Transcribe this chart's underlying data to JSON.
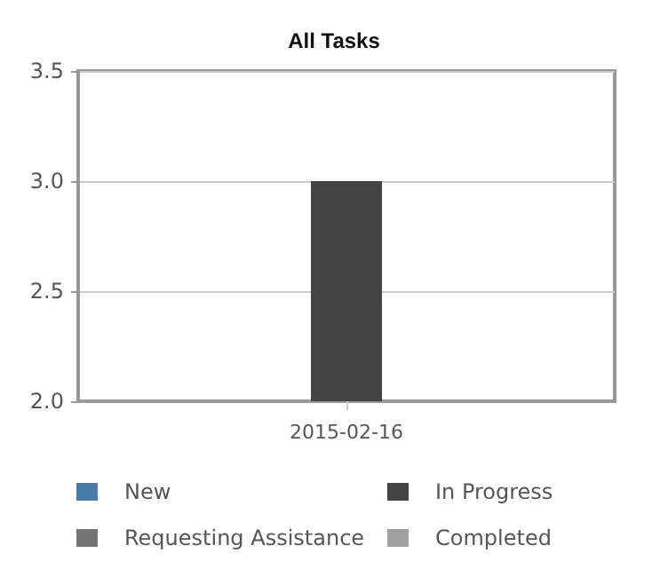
{
  "chart_data": {
    "type": "bar",
    "title": "All Tasks",
    "categories": [
      "2015-02-16"
    ],
    "series": [
      {
        "name": "New",
        "color": "#4a7aa8",
        "values": [
          null
        ]
      },
      {
        "name": "In Progress",
        "color": "#444444",
        "values": [
          3.0
        ]
      },
      {
        "name": "Requesting Assistance",
        "color": "#737373",
        "values": [
          null
        ]
      },
      {
        "name": "Completed",
        "color": "#a0a0a0",
        "values": [
          null
        ]
      }
    ],
    "ylim": [
      2.0,
      3.5
    ],
    "yticks": [
      {
        "value": 2,
        "label": "2.0"
      },
      2.5,
      {
        "value": 3,
        "label": "3.0"
      },
      3.5
    ],
    "grid": "y",
    "legend": "bottom"
  }
}
